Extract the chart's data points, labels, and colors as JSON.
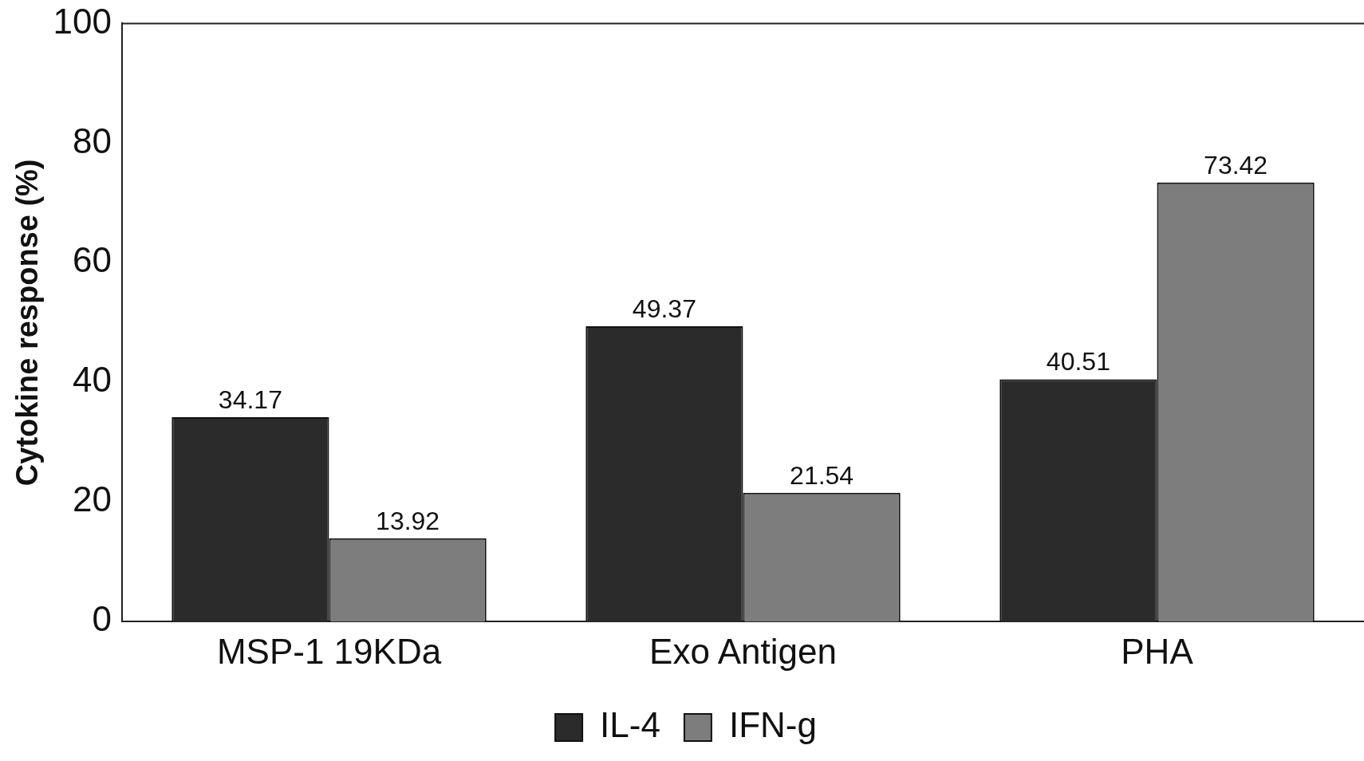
{
  "chart_data": {
    "type": "bar",
    "ylabel": "Cytokine response (%)",
    "categories": [
      "MSP-1 19KDa",
      "Exo Antigen",
      "PHA"
    ],
    "series": [
      {
        "name": "IL-4",
        "color": "#2b2b2b",
        "values": [
          34.17,
          49.37,
          40.51
        ]
      },
      {
        "name": "IFN-g",
        "color": "#7d7d7d",
        "values": [
          13.92,
          21.54,
          73.42
        ]
      }
    ],
    "ylim": [
      0,
      100
    ],
    "yticks": [
      0,
      20,
      40,
      60,
      80,
      100
    ],
    "grid": false,
    "legend": "bottom",
    "data_labels": true
  }
}
